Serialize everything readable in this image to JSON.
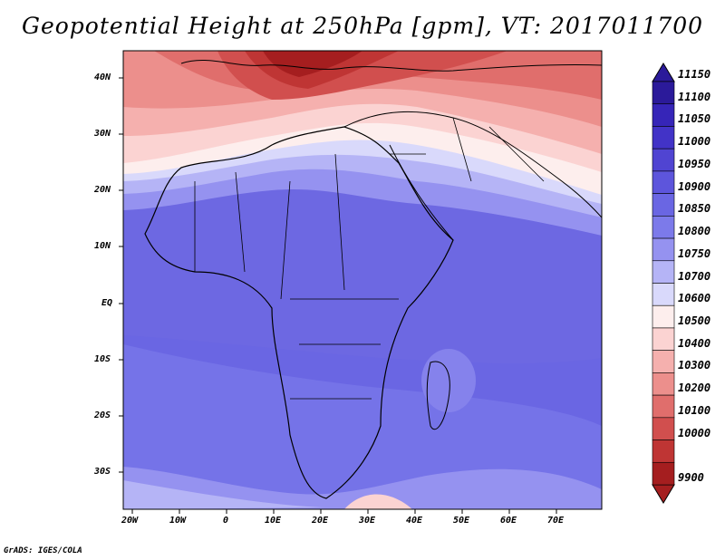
{
  "title": "Geopotential Height at 250hPa [gpm], VT: 2017011700",
  "credit": "GrADS: IGES/COLA",
  "map": {
    "region": "Africa and Middle East",
    "lon_range": [
      -22,
      80
    ],
    "lat_range": [
      -37,
      45
    ],
    "lon_ticks": [
      "20W",
      "10W",
      "0",
      "10E",
      "20E",
      "30E",
      "40E",
      "50E",
      "60E",
      "70E"
    ],
    "lat_ticks": [
      "40N",
      "30N",
      "20N",
      "10N",
      "EQ",
      "10S",
      "20S",
      "30S"
    ]
  },
  "colorbar": {
    "labels": [
      "11150",
      "11100",
      "11050",
      "11000",
      "10950",
      "10900",
      "10850",
      "10800",
      "10750",
      "10700",
      "10600",
      "10500",
      "10400",
      "10300",
      "10200",
      "10100",
      "10000",
      "9900"
    ],
    "colors": [
      "#2b1a9a",
      "#3625b8",
      "#4233c7",
      "#5044d2",
      "#5d55dc",
      "#6a66e3",
      "#7c7aea",
      "#9592f0",
      "#b5b4f6",
      "#d9d9fb",
      "#fdeeed",
      "#fbd3d2",
      "#f5b0ae",
      "#ec8f8c",
      "#e06e6c",
      "#d14f4e",
      "#bf3534",
      "#a51e1f"
    ]
  }
}
